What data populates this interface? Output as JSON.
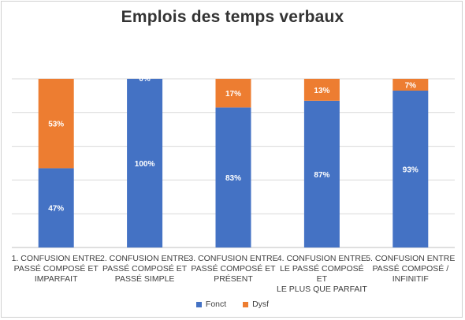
{
  "chart_data": {
    "type": "bar",
    "stacked": true,
    "title": "Emplois des temps verbaux",
    "categories": [
      [
        "1. CONFUSION ENTRE",
        "PASSÉ COMPOSÉ ET",
        "IMPARFAIT"
      ],
      [
        "2. CONFUSION ENTRE",
        "PASSÉ COMPOSÉ ET",
        "PASSÉ SIMPLE"
      ],
      [
        "3. CONFUSION ENTRE",
        "PASSÉ COMPOSÉ ET",
        "PRÉSENT"
      ],
      [
        "4. CONFUSION ENTRE",
        "LE PASSÉ COMPOSÉ ET",
        "LE PLUS QUE PARFAIT"
      ],
      [
        "5. CONFUSION ENTRE",
        "PASSÉ COMPOSÉ /",
        "INFINITIF"
      ]
    ],
    "series": [
      {
        "name": "Fonct",
        "color": "#4472C4",
        "values": [
          47,
          100,
          83,
          87,
          93
        ],
        "labels": [
          "47%",
          "100%",
          "83%",
          "87%",
          "93%"
        ]
      },
      {
        "name": "Dysf",
        "color": "#ED7D31",
        "values": [
          53,
          0,
          17,
          13,
          7
        ],
        "labels": [
          "53%",
          "0%",
          "17%",
          "13%",
          "7%"
        ]
      }
    ],
    "ylim": [
      0,
      100
    ],
    "grid": true,
    "legend_position": "bottom"
  }
}
